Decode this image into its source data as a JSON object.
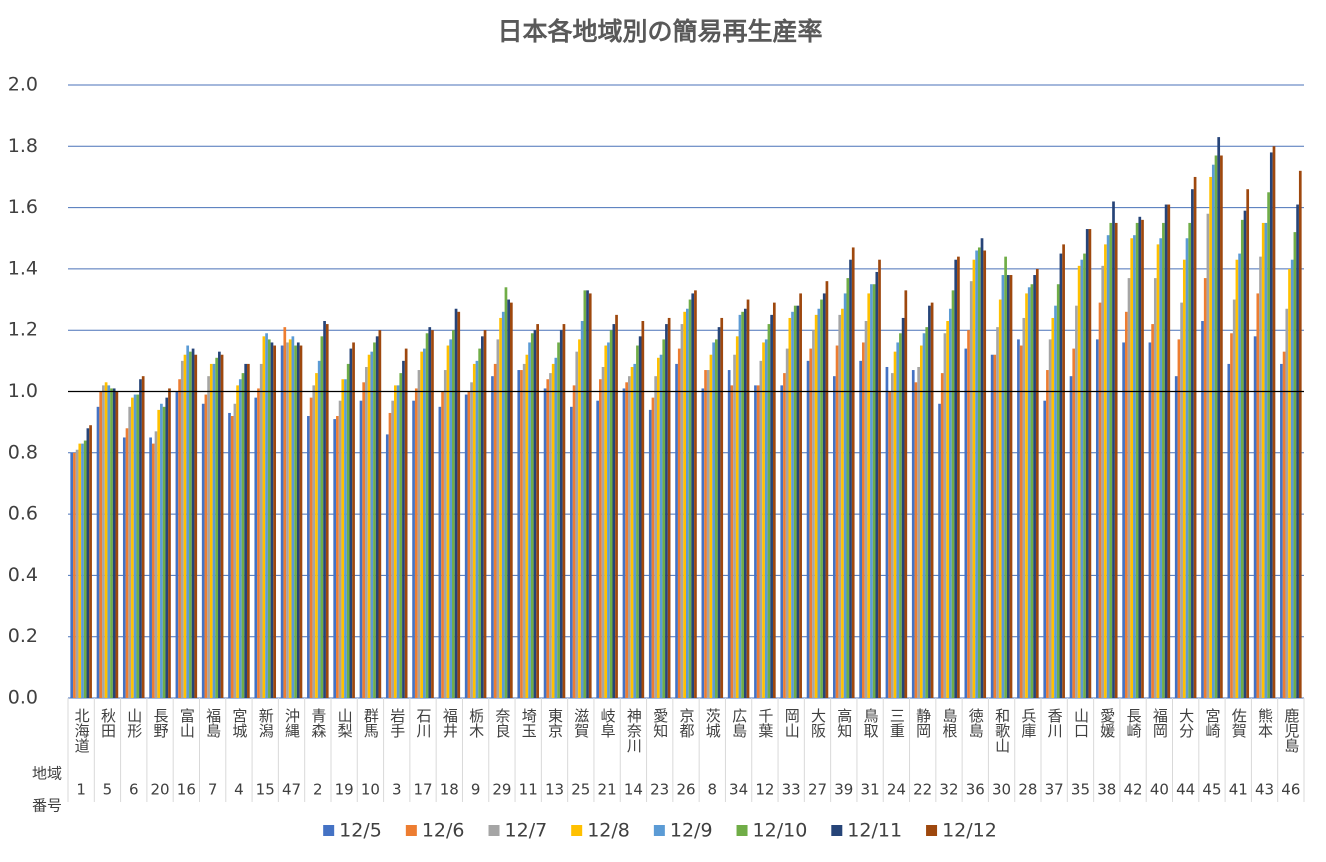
{
  "chart_data": {
    "type": "bar",
    "title": "日本各地域別の簡易再生産率",
    "categories": [
      "北海道",
      "秋田",
      "山形",
      "長野",
      "富山",
      "福島",
      "宮城",
      "新潟",
      "沖縄",
      "青森",
      "山梨",
      "群馬",
      "岩手",
      "石川",
      "福井",
      "栃木",
      "奈良",
      "埼玉",
      "東京",
      "滋賀",
      "岐阜",
      "神奈川",
      "愛知",
      "京都",
      "茨城",
      "広島",
      "千葉",
      "岡山",
      "大阪",
      "高知",
      "鳥取",
      "三重",
      "静岡",
      "島根",
      "徳島",
      "和歌山",
      "兵庫",
      "香川",
      "山口",
      "愛媛",
      "長崎",
      "福岡",
      "大分",
      "宮崎",
      "佐賀",
      "熊本",
      "鹿児島"
    ],
    "region_numbers": [
      1,
      5,
      6,
      20,
      16,
      7,
      4,
      15,
      47,
      2,
      19,
      10,
      3,
      17,
      18,
      9,
      29,
      11,
      13,
      25,
      21,
      14,
      23,
      26,
      8,
      34,
      12,
      33,
      27,
      39,
      31,
      24,
      22,
      32,
      36,
      30,
      28,
      37,
      35,
      38,
      42,
      40,
      44,
      45,
      41,
      43,
      46
    ],
    "region_number_label": [
      "地域",
      "番号"
    ],
    "series": [
      {
        "name": "12/5",
        "color": "#4472c4",
        "values": [
          0.8,
          0.95,
          0.85,
          0.85,
          1.0,
          0.96,
          0.93,
          0.98,
          1.15,
          0.92,
          0.91,
          0.97,
          0.86,
          0.97,
          0.95,
          0.99,
          1.05,
          1.07,
          1.01,
          0.95,
          0.97,
          1.01,
          0.94,
          1.09,
          1.01,
          1.07,
          1.02,
          1.02,
          1.1,
          1.05,
          1.1,
          1.08,
          1.07,
          0.96,
          1.14,
          1.12,
          1.17,
          0.97,
          1.05,
          1.17,
          1.16,
          1.16,
          1.05,
          1.23,
          1.09,
          1.18,
          1.09
        ]
      },
      {
        "name": "12/6",
        "color": "#ed7d31",
        "values": [
          0.8,
          1.0,
          0.88,
          0.83,
          1.04,
          0.99,
          0.92,
          1.01,
          1.21,
          0.98,
          0.92,
          1.03,
          0.93,
          1.01,
          1.0,
          1.0,
          1.09,
          1.07,
          1.04,
          1.02,
          1.04,
          1.03,
          0.98,
          1.14,
          1.07,
          1.02,
          1.02,
          1.06,
          1.14,
          1.15,
          1.16,
          1.0,
          1.03,
          1.06,
          1.2,
          1.12,
          1.15,
          1.07,
          1.14,
          1.29,
          1.26,
          1.22,
          1.17,
          1.37,
          1.19,
          1.32,
          1.13
        ]
      },
      {
        "name": "12/7",
        "color": "#a5a5a5",
        "values": [
          0.81,
          1.02,
          0.95,
          0.87,
          1.1,
          1.05,
          0.96,
          1.09,
          1.16,
          1.02,
          0.97,
          1.08,
          0.97,
          1.07,
          1.07,
          1.03,
          1.17,
          1.09,
          1.06,
          1.13,
          1.08,
          1.05,
          1.05,
          1.22,
          1.07,
          1.12,
          1.1,
          1.14,
          1.2,
          1.25,
          1.23,
          1.06,
          1.08,
          1.19,
          1.36,
          1.21,
          1.24,
          1.17,
          1.28,
          1.41,
          1.37,
          1.37,
          1.29,
          1.58,
          1.3,
          1.44,
          1.27
        ]
      },
      {
        "name": "12/8",
        "color": "#ffc000",
        "values": [
          0.83,
          1.03,
          0.98,
          0.94,
          1.12,
          1.09,
          1.02,
          1.18,
          1.17,
          1.06,
          1.04,
          1.12,
          1.02,
          1.13,
          1.15,
          1.09,
          1.24,
          1.12,
          1.09,
          1.17,
          1.15,
          1.08,
          1.11,
          1.26,
          1.12,
          1.18,
          1.16,
          1.24,
          1.25,
          1.27,
          1.32,
          1.13,
          1.15,
          1.23,
          1.43,
          1.3,
          1.32,
          1.24,
          1.41,
          1.48,
          1.5,
          1.48,
          1.43,
          1.7,
          1.43,
          1.55,
          1.4
        ]
      },
      {
        "name": "12/9",
        "color": "#5b9bd5",
        "values": [
          0.83,
          1.02,
          0.99,
          0.96,
          1.15,
          1.09,
          1.04,
          1.19,
          1.18,
          1.1,
          1.04,
          1.13,
          1.02,
          1.14,
          1.17,
          1.1,
          1.26,
          1.16,
          1.11,
          1.23,
          1.16,
          1.09,
          1.12,
          1.27,
          1.16,
          1.25,
          1.17,
          1.26,
          1.27,
          1.32,
          1.35,
          1.16,
          1.19,
          1.27,
          1.46,
          1.38,
          1.34,
          1.28,
          1.43,
          1.51,
          1.51,
          1.5,
          1.5,
          1.74,
          1.45,
          1.55,
          1.43
        ]
      },
      {
        "name": "12/10",
        "color": "#70ad47",
        "values": [
          0.84,
          1.01,
          0.99,
          0.95,
          1.13,
          1.11,
          1.06,
          1.17,
          1.15,
          1.18,
          1.09,
          1.16,
          1.06,
          1.19,
          1.2,
          1.14,
          1.34,
          1.19,
          1.16,
          1.33,
          1.2,
          1.15,
          1.17,
          1.3,
          1.17,
          1.26,
          1.22,
          1.28,
          1.3,
          1.37,
          1.35,
          1.19,
          1.21,
          1.33,
          1.47,
          1.44,
          1.35,
          1.35,
          1.45,
          1.55,
          1.55,
          1.55,
          1.55,
          1.77,
          1.56,
          1.65,
          1.52
        ]
      },
      {
        "name": "12/11",
        "color": "#264478",
        "values": [
          0.88,
          1.01,
          1.04,
          0.98,
          1.14,
          1.13,
          1.09,
          1.16,
          1.16,
          1.23,
          1.14,
          1.18,
          1.1,
          1.21,
          1.27,
          1.18,
          1.3,
          1.2,
          1.2,
          1.33,
          1.22,
          1.18,
          1.22,
          1.32,
          1.21,
          1.27,
          1.25,
          1.28,
          1.32,
          1.43,
          1.39,
          1.24,
          1.28,
          1.43,
          1.5,
          1.38,
          1.38,
          1.45,
          1.53,
          1.62,
          1.57,
          1.61,
          1.66,
          1.83,
          1.59,
          1.78,
          1.61
        ]
      },
      {
        "name": "12/12",
        "color": "#9e480e",
        "values": [
          0.89,
          1.0,
          1.05,
          1.01,
          1.12,
          1.12,
          1.09,
          1.15,
          1.15,
          1.22,
          1.16,
          1.2,
          1.14,
          1.2,
          1.26,
          1.2,
          1.29,
          1.22,
          1.22,
          1.32,
          1.25,
          1.23,
          1.24,
          1.33,
          1.24,
          1.3,
          1.29,
          1.32,
          1.36,
          1.47,
          1.43,
          1.33,
          1.29,
          1.44,
          1.46,
          1.38,
          1.4,
          1.48,
          1.53,
          1.55,
          1.56,
          1.61,
          1.7,
          1.77,
          1.66,
          1.8,
          1.72
        ]
      }
    ],
    "ylim": [
      0,
      2
    ],
    "yticks": [
      {
        "value": 0,
        "label": "0.0"
      },
      {
        "value": 0.2,
        "label": "0.2"
      },
      {
        "value": 0.4,
        "label": "0.4"
      },
      {
        "value": 0.6,
        "label": "0.6"
      },
      {
        "value": 0.8,
        "label": "0.8"
      },
      {
        "value": 1,
        "label": "1.0"
      },
      {
        "value": 1.2,
        "label": "1.2"
      },
      {
        "value": 1.4,
        "label": "1.4"
      },
      {
        "value": 1.6,
        "label": "1.6"
      },
      {
        "value": 1.8,
        "label": "1.8"
      },
      {
        "value": 2,
        "label": "2.0"
      }
    ],
    "grid": true,
    "grid_color": "#4a72b8",
    "reference_line": 1,
    "legend": "bottom"
  }
}
